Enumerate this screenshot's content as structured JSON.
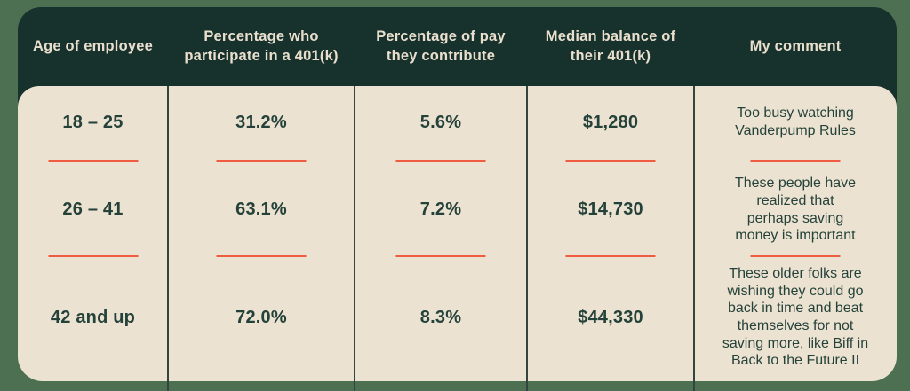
{
  "chart_data": {
    "type": "table",
    "title": "401(k) participation by age of employee",
    "columns": [
      "Age of employee",
      "Percentage who participate in a 401(k)",
      "Percentage of pay they contribute",
      "Median balance of their 401(k)",
      "My comment"
    ],
    "rows": [
      [
        "18 – 25",
        "31.2%",
        "5.6%",
        "$1,280",
        "Too busy watching Vanderpump Rules"
      ],
      [
        "26 – 41",
        "63.1%",
        "7.2%",
        "$14,730",
        "These people have realized that perhaps saving money is important"
      ],
      [
        "42 and up",
        "72.0%",
        "8.3%",
        "$44,330",
        "These older folks are wishing they could go back in time and beat themselves for not saving more, like Biff in Back to the Future II"
      ]
    ]
  },
  "table": {
    "header": {
      "columns": [
        "Age of employee",
        "Percentage who\nparticipate in a 401(k)",
        "Percentage of pay\nthey contribute",
        "Median balance of\ntheir 401(k)",
        "My comment"
      ]
    },
    "rows": [
      {
        "age": "18 – 25",
        "participation": "31.2%",
        "contribution": "5.6%",
        "median_balance": "$1,280",
        "comment": "Too busy watching\nVanderpump Rules"
      },
      {
        "age": "26 – 41",
        "participation": "63.1%",
        "contribution": "7.2%",
        "median_balance": "$14,730",
        "comment": "These people have\nrealized that\nperhaps saving\nmoney is important"
      },
      {
        "age": "42 and up",
        "participation": "72.0%",
        "contribution": "8.3%",
        "median_balance": "$44,330",
        "comment": "These older folks are\nwishing they could go\nback in time and beat\nthemselves for not\nsaving more, like Biff in\nBack to the Future II"
      }
    ]
  },
  "colors": {
    "page_background": "#4d7053",
    "header_background": "#17322c",
    "header_text": "#eadfce",
    "body_background": "#ece2d1",
    "body_text": "#24423a",
    "divider_red": "#f05c42",
    "column_separator": "#33453f"
  }
}
